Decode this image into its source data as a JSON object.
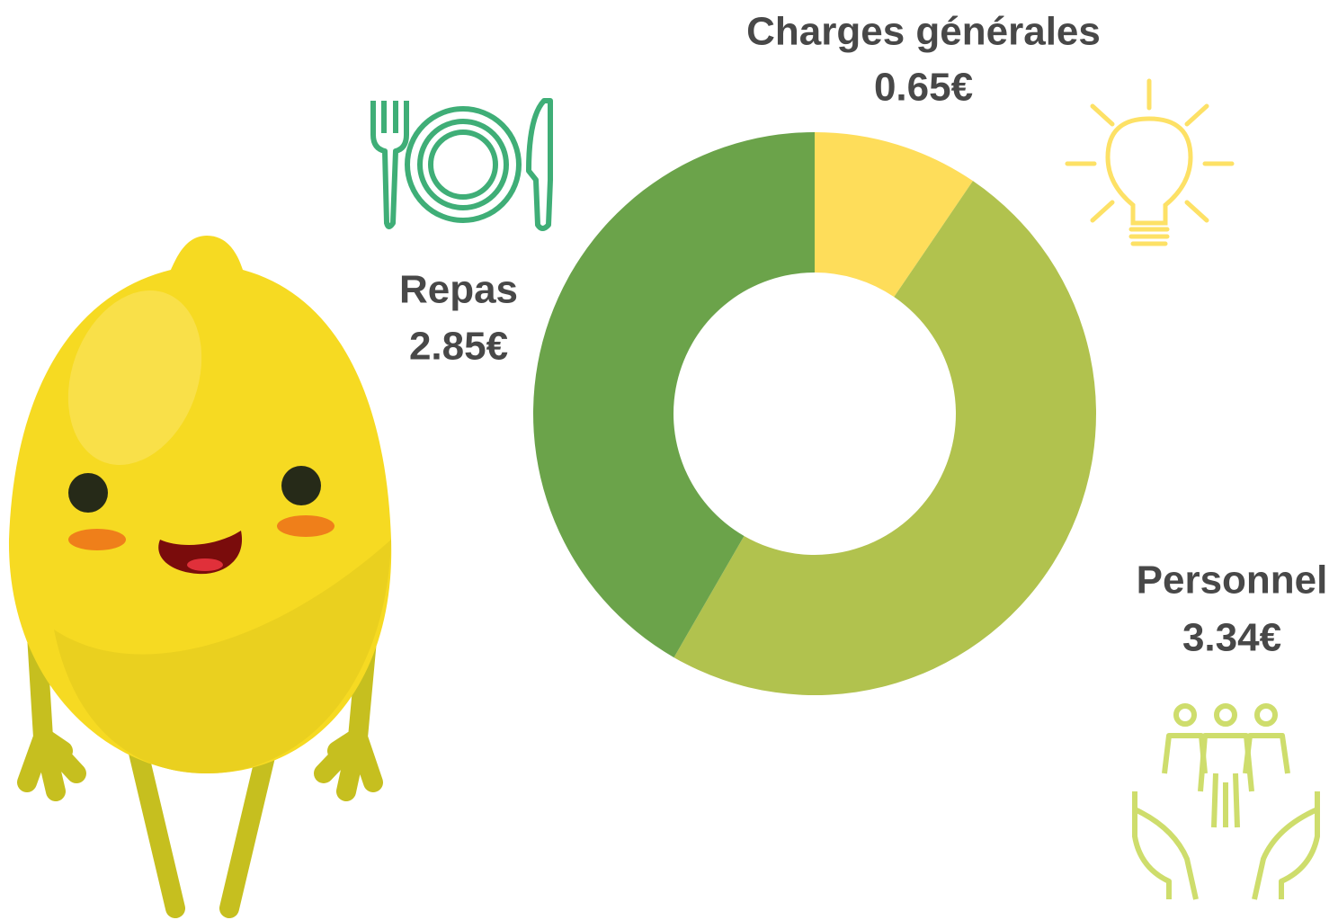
{
  "chart_data": {
    "type": "donut",
    "categories": [
      "Charges générales",
      "Personnel",
      "Repas"
    ],
    "values": [
      0.65,
      3.34,
      2.85
    ],
    "value_labels": [
      "0.65€",
      "3.34€",
      "2.85€"
    ],
    "colors": [
      "#fedd5a",
      "#b1c24e",
      "#6ba34a"
    ]
  }
}
